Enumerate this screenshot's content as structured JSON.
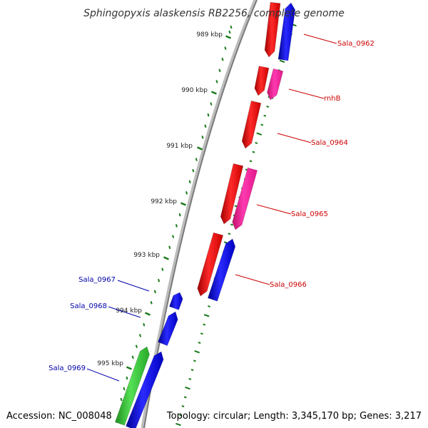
{
  "title": "Sphingopyxis alaskensis RB2256, complete genome",
  "accession": "Accession: NC_008048",
  "topology": "Topology: circular; Length: 3,345,170 bp; Genes: 3,217",
  "colors": {
    "backbone": "#808080",
    "ticks": "#1a7a1a",
    "red": "#ff0000",
    "blue": "#0000ee",
    "pink": "#ff2299",
    "green": "#33cc33",
    "label_red": "#cc0000",
    "label_blue": "#0000aa"
  },
  "scale": {
    "ticks": [
      {
        "kbp": 989,
        "label": "989 kbp"
      },
      {
        "kbp": 990,
        "label": "990 kbp"
      },
      {
        "kbp": 991,
        "label": "991 kbp"
      },
      {
        "kbp": 992,
        "label": "992 kbp"
      },
      {
        "kbp": 993,
        "label": "993 kbp"
      },
      {
        "kbp": 994,
        "label": "994 kbp"
      },
      {
        "kbp": 995,
        "label": "995 kbp"
      }
    ]
  },
  "genes": [
    {
      "name": "Sala_0962",
      "color": "red",
      "track": "outer",
      "strand": "-"
    },
    {
      "name": "Sala_0962",
      "color": "blue",
      "track": "inner",
      "strand": "+"
    },
    {
      "name": "rnhB",
      "color": "red",
      "track": "outer",
      "strand": "-"
    },
    {
      "name": "rnhB",
      "color": "pink",
      "track": "inner",
      "strand": "-"
    },
    {
      "name": "Sala_0964",
      "color": "red",
      "track": "outer",
      "strand": "-"
    },
    {
      "name": "Sala_0965",
      "color": "red",
      "track": "outer",
      "strand": "-"
    },
    {
      "name": "Sala_0965",
      "color": "pink",
      "track": "inner",
      "strand": "-"
    },
    {
      "name": "Sala_0966",
      "color": "red",
      "track": "outer",
      "strand": "-"
    },
    {
      "name": "Sala_0966",
      "color": "blue",
      "track": "inner",
      "strand": "+"
    },
    {
      "name": "Sala_0967",
      "color": "blue",
      "track": "inner",
      "strand": "+"
    },
    {
      "name": "Sala_0968",
      "color": "blue",
      "track": "inner",
      "strand": "+"
    },
    {
      "name": "Sala_0969",
      "color": "blue",
      "track": "inner",
      "strand": "+"
    },
    {
      "name": "Sala_0969",
      "color": "green",
      "track": "outer",
      "strand": "+"
    }
  ],
  "labels": [
    {
      "text": "Sala_0962",
      "color": "label_red",
      "side": "right"
    },
    {
      "text": "rnhB",
      "color": "label_red",
      "side": "right"
    },
    {
      "text": "Sala_0964",
      "color": "label_red",
      "side": "right"
    },
    {
      "text": "Sala_0965",
      "color": "label_red",
      "side": "right"
    },
    {
      "text": "Sala_0966",
      "color": "label_red",
      "side": "right"
    },
    {
      "text": "Sala_0967",
      "color": "label_blue",
      "side": "left"
    },
    {
      "text": "Sala_0968",
      "color": "label_blue",
      "side": "left"
    },
    {
      "text": "Sala_0969",
      "color": "label_blue",
      "side": "left"
    }
  ]
}
